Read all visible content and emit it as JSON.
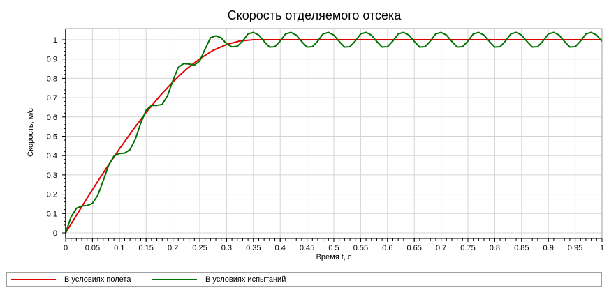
{
  "chart_data": {
    "type": "line",
    "title": "Скорость отделяемого отсека",
    "xlabel": "Время t, с",
    "ylabel": "Скорость, м/с",
    "xlim": [
      0,
      1
    ],
    "ylim": [
      0,
      1.05
    ],
    "x_ticks": [
      "0",
      "0.05",
      "0.1",
      "0.15",
      "0.2",
      "0.25",
      "0.3",
      "0.35",
      "0.4",
      "0.45",
      "0.5",
      "0.55",
      "0.6",
      "0.65",
      "0.7",
      "0.75",
      "0.8",
      "0.85",
      "0.9",
      "0.95",
      "1"
    ],
    "y_ticks": [
      "0",
      "0.1",
      "0.2",
      "0.3",
      "0.4",
      "0.5",
      "0.6",
      "0.7",
      "0.8",
      "0.9",
      "1"
    ],
    "grid": true,
    "legend_position": "bottom",
    "series": [
      {
        "name": "В условиях полета",
        "color": "#e00000",
        "x": [
          0,
          0.025,
          0.05,
          0.075,
          0.1,
          0.125,
          0.15,
          0.175,
          0.2,
          0.225,
          0.25,
          0.275,
          0.3,
          0.325,
          0.35,
          0.375,
          0.4,
          0.45,
          0.5,
          0.55,
          0.6,
          0.65,
          0.7,
          0.75,
          0.8,
          0.85,
          0.9,
          0.95,
          1
        ],
        "values": [
          0,
          0.113,
          0.224,
          0.331,
          0.434,
          0.531,
          0.623,
          0.707,
          0.782,
          0.848,
          0.901,
          0.945,
          0.975,
          0.994,
          1,
          1,
          1,
          1,
          1,
          1,
          1,
          1,
          1,
          1,
          1,
          1,
          1,
          1,
          1
        ]
      },
      {
        "name": "В условиях испытаний",
        "color": "#007000",
        "x": [
          0,
          0.01,
          0.02,
          0.03,
          0.04,
          0.05,
          0.06,
          0.07,
          0.08,
          0.09,
          0.1,
          0.11,
          0.12,
          0.13,
          0.14,
          0.15,
          0.16,
          0.17,
          0.18,
          0.19,
          0.2,
          0.21,
          0.22,
          0.23,
          0.24,
          0.25,
          0.26,
          0.27,
          0.28,
          0.29,
          0.3,
          0.31,
          0.32,
          0.33,
          0.34,
          0.35,
          0.36,
          0.37,
          0.38,
          0.39,
          0.4,
          0.41,
          0.42,
          0.43,
          0.44,
          0.45,
          0.46,
          0.47,
          0.48,
          0.49,
          0.5,
          0.51,
          0.52,
          0.53,
          0.54,
          0.55,
          0.56,
          0.57,
          0.58,
          0.59,
          0.6,
          0.61,
          0.62,
          0.63,
          0.64,
          0.65,
          0.66,
          0.67,
          0.68,
          0.69,
          0.7,
          0.71,
          0.72,
          0.73,
          0.74,
          0.75,
          0.76,
          0.77,
          0.78,
          0.79,
          0.8,
          0.81,
          0.82,
          0.83,
          0.84,
          0.85,
          0.86,
          0.87,
          0.88,
          0.89,
          0.9,
          0.91,
          0.92,
          0.93,
          0.94,
          0.95,
          0.96,
          0.97,
          0.98,
          0.99,
          1
        ],
        "values": [
          0,
          0.082,
          0.127,
          0.139,
          0.141,
          0.153,
          0.195,
          0.27,
          0.348,
          0.398,
          0.411,
          0.413,
          0.431,
          0.485,
          0.568,
          0.635,
          0.66,
          0.66,
          0.665,
          0.711,
          0.789,
          0.857,
          0.876,
          0.874,
          0.869,
          0.89,
          0.952,
          1.01,
          1.02,
          1.01,
          0.979,
          0.963,
          0.966,
          0.993,
          1.03,
          1.038,
          1.024,
          0.991,
          0.962,
          0.964,
          0.993,
          1.03,
          1.038,
          1.024,
          0.991,
          0.962,
          0.964,
          0.993,
          1.03,
          1.038,
          1.024,
          0.991,
          0.962,
          0.964,
          0.993,
          1.03,
          1.038,
          1.024,
          0.991,
          0.962,
          0.964,
          0.993,
          1.03,
          1.038,
          1.024,
          0.991,
          0.962,
          0.964,
          0.993,
          1.03,
          1.038,
          1.024,
          0.991,
          0.962,
          0.964,
          0.993,
          1.03,
          1.038,
          1.024,
          0.991,
          0.962,
          0.964,
          0.993,
          1.03,
          1.038,
          1.024,
          0.991,
          0.962,
          0.964,
          0.993,
          1.03,
          1.038,
          1.024,
          0.991,
          0.962,
          0.964,
          0.993,
          1.03,
          1.038,
          1.024,
          0.991
        ]
      }
    ]
  }
}
